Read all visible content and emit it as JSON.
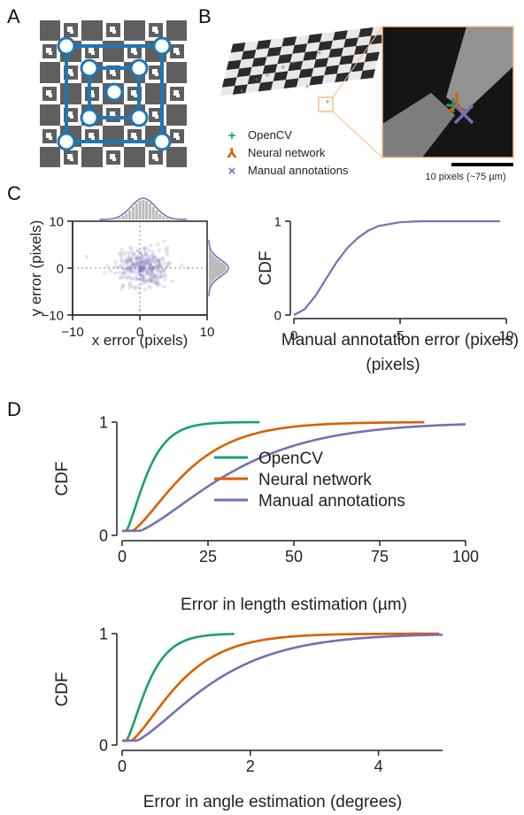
{
  "panel_labels": {
    "A": "A",
    "B": "B",
    "C": "C",
    "D": "D"
  },
  "panel_b": {
    "legend": [
      {
        "marker": "+",
        "label": "OpenCV",
        "color": "#1b9e77"
      },
      {
        "marker": "⅄",
        "label": "Neural network",
        "color": "#d95f02"
      },
      {
        "marker": "×",
        "label": "Manual annotations",
        "color": "#7570b3"
      }
    ],
    "scale_bar_label": "10 pixels (~75 µm)"
  },
  "colors": {
    "opencv": "#1b9e77",
    "neural": "#d95f02",
    "manual": "#7570b3",
    "grid_blue": "#1f77b4",
    "inset_border": "#f4c08a"
  },
  "chart_data": [
    {
      "id": "c_scatter",
      "type": "scatter",
      "xlabel": "x error (pixels)",
      "ylabel": "y error (pixels)",
      "xlim": [
        -10,
        10
      ],
      "ylim": [
        -10,
        10
      ],
      "xticks": [
        "−10",
        "0",
        "10"
      ],
      "yticks": [
        "10",
        "0",
        "−10"
      ],
      "center": [
        0.5,
        0
      ],
      "spread": [
        2.0,
        2.0
      ],
      "marginal": "histogram with density curve on top (x) and right (y)"
    },
    {
      "id": "c_cdf",
      "type": "line",
      "xlabel": "Manual annotation error (pixels)",
      "ylabel": "CDF",
      "xlim": [
        0,
        10
      ],
      "ylim": [
        0,
        1
      ],
      "xticks": [
        "0",
        "5",
        "10"
      ],
      "yticks": [
        "1",
        "0"
      ],
      "series": [
        {
          "values_x": [
            0,
            0.5,
            1,
            1.5,
            2,
            2.5,
            3,
            3.5,
            4,
            5,
            6,
            7,
            8,
            9.7
          ],
          "values_y": [
            0,
            0.06,
            0.2,
            0.38,
            0.56,
            0.71,
            0.82,
            0.9,
            0.95,
            0.99,
            1,
            1,
            1,
            1
          ]
        }
      ]
    },
    {
      "id": "d_length",
      "type": "line",
      "xlabel": "Error in length estimation (µm)",
      "ylabel": "CDF",
      "xlim": [
        0,
        100
      ],
      "ylim": [
        0,
        1
      ],
      "xticks": [
        "0",
        "25",
        "50",
        "75",
        "100"
      ],
      "yticks": [
        "1",
        "0"
      ],
      "legend_position": "center-right",
      "series": [
        {
          "name": "OpenCV",
          "scale": 4,
          "xmax": 40
        },
        {
          "name": "Neural network",
          "scale": 10,
          "xmax": 88
        },
        {
          "name": "Manual annotations",
          "scale": 17,
          "xmax": 100
        }
      ]
    },
    {
      "id": "d_angle",
      "type": "line",
      "xlabel": "Error in angle estimation (degrees)",
      "ylabel": "CDF",
      "xlim": [
        0,
        5
      ],
      "ylim": [
        0,
        1
      ],
      "xticks": [
        "0",
        "2",
        "4"
      ],
      "yticks": [
        "1",
        "0"
      ],
      "series": [
        {
          "name": "OpenCV",
          "scale": 0.22,
          "xmax": 1.75
        },
        {
          "name": "Neural network",
          "scale": 0.48,
          "xmax": 4.95
        },
        {
          "name": "Manual annotations",
          "scale": 0.75,
          "xmax": 5.0
        }
      ]
    }
  ]
}
